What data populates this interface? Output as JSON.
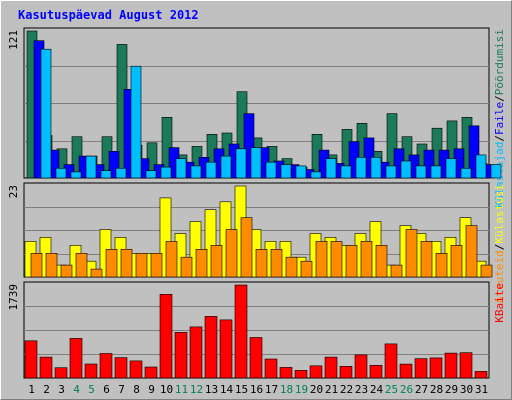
{
  "chart_data": {
    "type": "bar",
    "title": "Kasutuspäevad August 2012",
    "days": [
      1,
      2,
      3,
      4,
      5,
      6,
      7,
      8,
      9,
      10,
      11,
      12,
      13,
      14,
      15,
      16,
      17,
      18,
      19,
      20,
      21,
      22,
      23,
      24,
      25,
      26,
      27,
      28,
      29,
      30,
      31
    ],
    "weekend_days": [
      4,
      5,
      11,
      12,
      18,
      19,
      25,
      26
    ],
    "panels": [
      {
        "id": "traffic",
        "max_label": "121",
        "ymax": 121,
        "ylabel_parts": [
          "Külastajad",
          "/",
          "Faile",
          "/",
          "Pöördumisi"
        ],
        "series": [
          {
            "name": "Pöördumisi",
            "color": "#1a7a5a",
            "values": [
              121,
              35,
              24,
              34,
              18,
              34,
              110,
              27,
              29,
              50,
              19,
              26,
              36,
              37,
              71,
              33,
              26,
              16,
              9,
              36,
              19,
              40,
              45,
              22,
              53,
              34,
              28,
              41,
              47,
              50,
              12
            ]
          },
          {
            "name": "Faile",
            "color": "#0000ff",
            "values": [
              113,
              23,
              11,
              18,
              11,
              22,
              73,
              16,
              11,
              25,
              13,
              17,
              24,
              28,
              53,
              25,
              14,
              11,
              7,
              23,
              12,
              30,
              33,
              13,
              24,
              19,
              23,
              23,
              24,
              43,
              11
            ]
          },
          {
            "name": "Külastajad",
            "color": "#00bfff",
            "values": [
              106,
              8,
              5,
              18,
              6,
              8,
              92,
              6,
              9,
              16,
              10,
              13,
              18,
              24,
              25,
              13,
              11,
              10,
              5,
              16,
              10,
              17,
              17,
              10,
              14,
              10,
              10,
              16,
              8,
              19,
              11
            ]
          }
        ]
      },
      {
        "id": "visits",
        "max_label": "23",
        "ymax": 23,
        "ylabel_parts": [
          "Arvuteid",
          "/",
          "Külastusi"
        ],
        "series": [
          {
            "name": "Külastusi",
            "color": "#ffff00",
            "values": [
              9,
              10,
              3,
              8,
              4,
              12,
              10,
              6,
              6,
              20,
              11,
              14,
              17,
              19,
              23,
              12,
              9,
              9,
              5,
              11,
              10,
              8,
              11,
              14,
              3,
              13,
              11,
              9,
              10,
              15,
              4
            ]
          },
          {
            "name": "Arvuteid",
            "color": "#ff8c00",
            "values": [
              6,
              6,
              3,
              6,
              2,
              7,
              7,
              6,
              6,
              9,
              5,
              7,
              8,
              12,
              15,
              7,
              7,
              5,
              4,
              9,
              9,
              8,
              9,
              8,
              3,
              12,
              9,
              6,
              8,
              13,
              3
            ]
          }
        ]
      },
      {
        "id": "bytes",
        "max_label": "1739",
        "ymax": 1739,
        "ylabel_parts": [
          "KBaite"
        ],
        "series": [
          {
            "name": "KBaite",
            "color": "#ff0000",
            "values": [
              696,
              390,
              193,
              740,
              262,
              458,
              382,
              320,
              206,
              1565,
              852,
              955,
              1151,
              1087,
              1739,
              758,
              356,
              198,
              142,
              229,
              390,
              219,
              432,
              238,
              637,
              260,
              363,
              375,
              466,
              473,
              124
            ]
          }
        ]
      }
    ]
  },
  "colors": {
    "background": "#c0c0c0",
    "title": "#0000ff",
    "weekday_label": "#000000",
    "weekend_label": "#00805c",
    "gridline": "#808080",
    "panel_border": "#000000",
    "bar_outline": "#000000",
    "ylabel_separator": "#000000"
  }
}
